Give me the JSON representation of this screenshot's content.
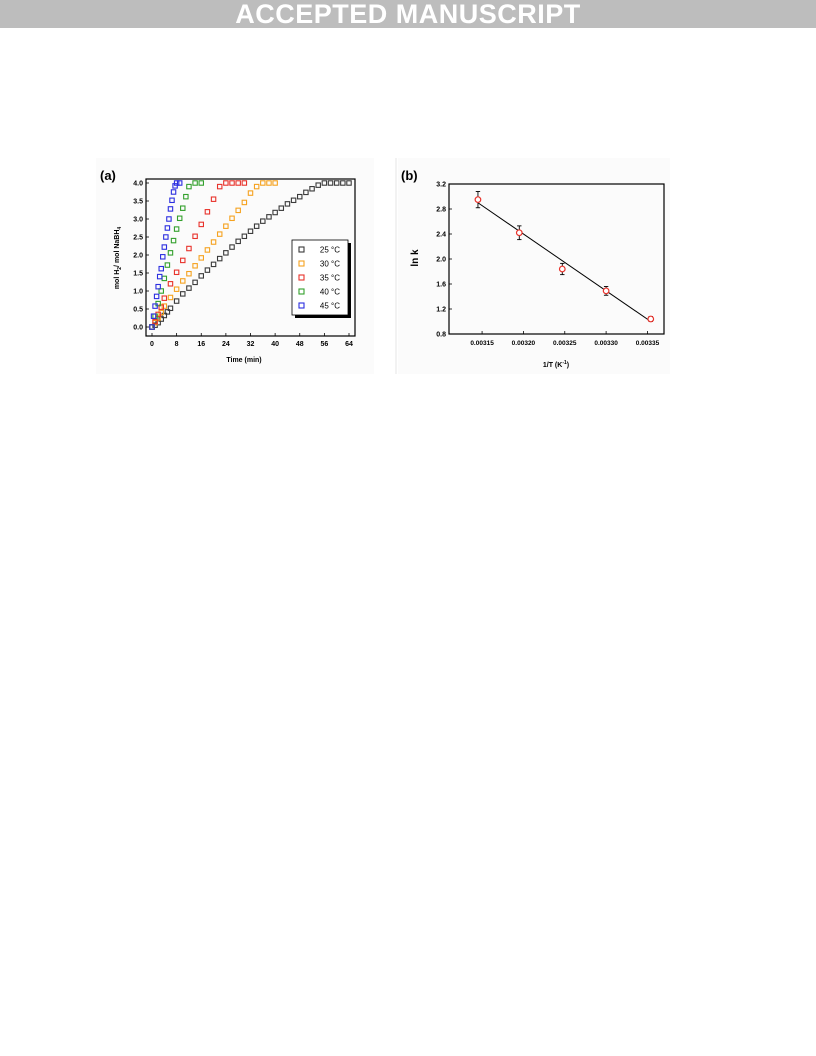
{
  "banner": {
    "text": "ACCEPTED MANUSCRIPT"
  },
  "colors": {
    "banner_bg": "#bdbdbd",
    "s25": "#3a3a3a",
    "s30": "#f5a21f",
    "s35": "#e8322b",
    "s40": "#33a02c",
    "s45": "#2b2ee0",
    "panel_b_marker": "#e8322b"
  },
  "chart_data": [
    {
      "type": "scatter",
      "panel_label": "(a)",
      "xlabel": "Time (min)",
      "ylabel_parts": {
        "main": "mol H",
        "sub1": "2",
        "mid": "/ mol NaBH",
        "sub2": "4"
      },
      "xlim": [
        0,
        64
      ],
      "ylim": [
        0,
        4.0
      ],
      "x_ticks": [
        0,
        8,
        16,
        24,
        32,
        40,
        48,
        56,
        64
      ],
      "y_ticks": [
        0.0,
        0.5,
        1.0,
        1.5,
        2.0,
        2.5,
        3.0,
        3.5,
        4.0
      ],
      "y_tick_labels": [
        "0.0",
        "0.5",
        "1.0",
        "1.5",
        "2.0",
        "2.5",
        "3.0",
        "3.5",
        "4.0"
      ],
      "grid": false,
      "legend_position": "right-middle",
      "series": [
        {
          "name": "25 °C",
          "color": "#3a3a3a",
          "x": [
            0,
            1,
            2,
            3,
            4,
            5,
            6,
            8,
            10,
            12,
            14,
            16,
            18,
            20,
            22,
            24,
            26,
            28,
            30,
            32,
            34,
            36,
            38,
            40,
            42,
            44,
            46,
            48,
            50,
            52,
            54,
            56,
            58,
            60,
            62,
            64
          ],
          "y": [
            0.0,
            0.05,
            0.12,
            0.22,
            0.32,
            0.42,
            0.52,
            0.72,
            0.92,
            1.08,
            1.24,
            1.42,
            1.58,
            1.74,
            1.9,
            2.06,
            2.22,
            2.38,
            2.52,
            2.66,
            2.8,
            2.94,
            3.06,
            3.18,
            3.3,
            3.42,
            3.52,
            3.62,
            3.74,
            3.84,
            3.94,
            4.0,
            4.0,
            4.0,
            4.0,
            4.0
          ]
        },
        {
          "name": "30 °C",
          "color": "#f5a21f",
          "x": [
            0,
            1,
            2,
            3,
            4,
            6,
            8,
            10,
            12,
            14,
            16,
            18,
            20,
            22,
            24,
            26,
            28,
            30,
            32,
            34,
            36,
            38,
            40
          ],
          "y": [
            0.0,
            0.12,
            0.25,
            0.4,
            0.58,
            0.82,
            1.05,
            1.28,
            1.48,
            1.7,
            1.92,
            2.14,
            2.36,
            2.58,
            2.8,
            3.02,
            3.24,
            3.46,
            3.72,
            3.9,
            4.0,
            4.0,
            4.0
          ]
        },
        {
          "name": "35 °C",
          "color": "#e8322b",
          "x": [
            0,
            1,
            2,
            3,
            4,
            6,
            8,
            10,
            12,
            14,
            16,
            18,
            20,
            22,
            24,
            26,
            28,
            30
          ],
          "y": [
            0.0,
            0.15,
            0.35,
            0.55,
            0.8,
            1.2,
            1.52,
            1.85,
            2.18,
            2.52,
            2.85,
            3.2,
            3.55,
            3.9,
            4.0,
            4.0,
            4.0,
            4.0
          ]
        },
        {
          "name": "40 °C",
          "color": "#33a02c",
          "x": [
            0,
            1,
            2,
            3,
            4,
            5,
            6,
            7,
            8,
            9,
            10,
            11,
            12,
            14,
            16
          ],
          "y": [
            0.0,
            0.3,
            0.65,
            1.0,
            1.35,
            1.72,
            2.06,
            2.4,
            2.72,
            3.02,
            3.3,
            3.62,
            3.9,
            4.0,
            4.0
          ]
        },
        {
          "name": "45 °C",
          "color": "#2b2ee0",
          "x": [
            0,
            0.5,
            1,
            1.5,
            2,
            2.5,
            3,
            3.5,
            4,
            4.5,
            5,
            5.5,
            6,
            6.5,
            7,
            7.5,
            8,
            9
          ],
          "y": [
            0.0,
            0.3,
            0.58,
            0.85,
            1.12,
            1.4,
            1.62,
            1.95,
            2.22,
            2.5,
            2.75,
            3.0,
            3.28,
            3.52,
            3.75,
            3.92,
            4.0,
            4.0
          ]
        }
      ]
    },
    {
      "type": "scatter",
      "panel_label": "(b)",
      "xlabel_parts": {
        "main": "1/T (K",
        "sup": "-1",
        "end": ")"
      },
      "ylabel": "ln k",
      "xlim": [
        0.00311,
        0.00337
      ],
      "ylim": [
        0.8,
        3.2
      ],
      "x_ticks": [
        0.00315,
        0.0032,
        0.00325,
        0.0033,
        0.00335
      ],
      "x_tick_labels": [
        "0.00315",
        "0.00320",
        "0.00325",
        "0.00330",
        "0.00335"
      ],
      "y_ticks": [
        0.8,
        1.2,
        1.6,
        2.0,
        2.4,
        2.8,
        3.2
      ],
      "y_tick_labels": [
        "0.8",
        "1.2",
        "1.6",
        "2.0",
        "2.4",
        "2.8",
        "3.2"
      ],
      "grid": false,
      "points": {
        "x": [
          0.003145,
          0.003195,
          0.003247,
          0.0033,
          0.003354
        ],
        "y": [
          2.95,
          2.42,
          1.84,
          1.49,
          1.04
        ],
        "err": [
          0.13,
          0.11,
          0.09,
          0.07,
          0.04
        ]
      },
      "fit_line": {
        "x": [
          0.003145,
          0.003354
        ],
        "y": [
          2.9,
          1.0
        ]
      }
    }
  ]
}
